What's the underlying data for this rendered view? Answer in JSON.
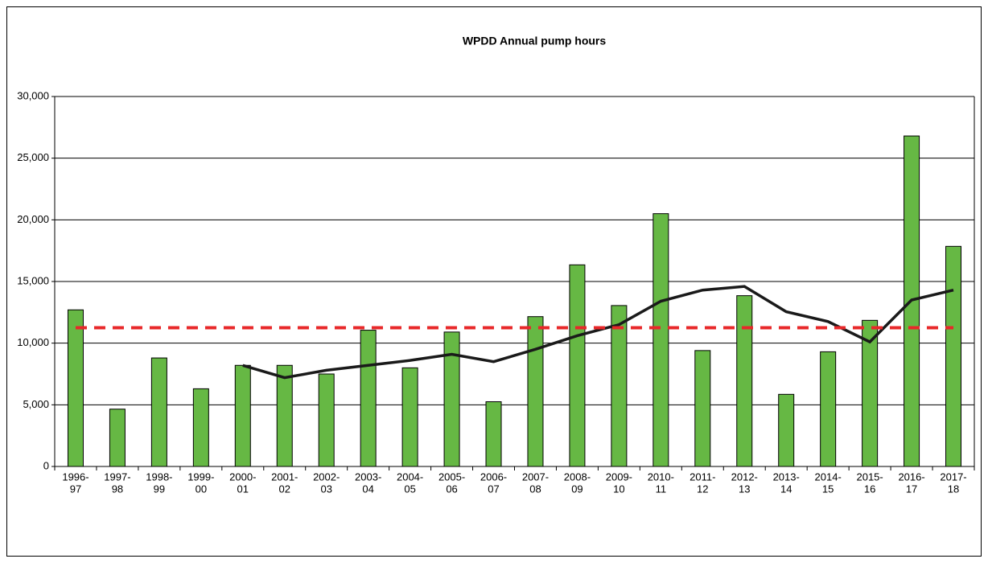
{
  "chart_data": {
    "type": "bar",
    "title": "WPDD Annual pump hours",
    "categories": [
      [
        "1996-",
        "97"
      ],
      [
        "1997-",
        "98"
      ],
      [
        "1998-",
        "99"
      ],
      [
        "1999-",
        "00"
      ],
      [
        "2000-",
        "01"
      ],
      [
        "2001-",
        "02"
      ],
      [
        "2002-",
        "03"
      ],
      [
        "2003-",
        "04"
      ],
      [
        "2004-",
        "05"
      ],
      [
        "2005-",
        "06"
      ],
      [
        "2006-",
        "07"
      ],
      [
        "2007-",
        "08"
      ],
      [
        "2008-",
        "09"
      ],
      [
        "2009-",
        "10"
      ],
      [
        "2010-",
        "11"
      ],
      [
        "2011-",
        "12"
      ],
      [
        "2012-",
        "13"
      ],
      [
        "2013-",
        "14"
      ],
      [
        "2014-",
        "15"
      ],
      [
        "2015-",
        "16"
      ],
      [
        "2016-",
        "17"
      ],
      [
        "2017-",
        "18"
      ]
    ],
    "series": [
      {
        "type": "bar",
        "color": "#66b844",
        "values": [
          12700,
          4650,
          8800,
          6300,
          8200,
          8200,
          7500,
          11050,
          8000,
          10900,
          5250,
          12150,
          16350,
          13050,
          20500,
          9400,
          13850,
          5850,
          9300,
          11850,
          26800,
          17850
        ]
      },
      {
        "type": "line",
        "color": "#1a1a1a",
        "values": [
          null,
          null,
          null,
          null,
          8200,
          7200,
          7800,
          8200,
          8600,
          9100,
          8500,
          9500,
          10600,
          11500,
          13400,
          14300,
          14600,
          12550,
          11750,
          10100,
          13500,
          14300
        ]
      },
      {
        "type": "dashed-line",
        "color": "#e8282a",
        "values": [
          11250,
          11250,
          11250,
          11250,
          11250,
          11250,
          11250,
          11250,
          11250,
          11250,
          11250,
          11250,
          11250,
          11250,
          11250,
          11250,
          11250,
          11250,
          11250,
          11250,
          11250,
          11250
        ]
      }
    ],
    "ylim": [
      0,
      30000
    ],
    "yticks": [
      0,
      {
        "value": 5000,
        "label": "5,000"
      },
      {
        "value": 10000,
        "label": "10,000"
      },
      {
        "value": 15000,
        "label": "15,000"
      },
      {
        "value": 20000,
        "label": "20,000"
      },
      {
        "value": 25000,
        "label": "25,000"
      },
      {
        "value": 30000,
        "label": "30,000"
      }
    ],
    "grid": true
  }
}
